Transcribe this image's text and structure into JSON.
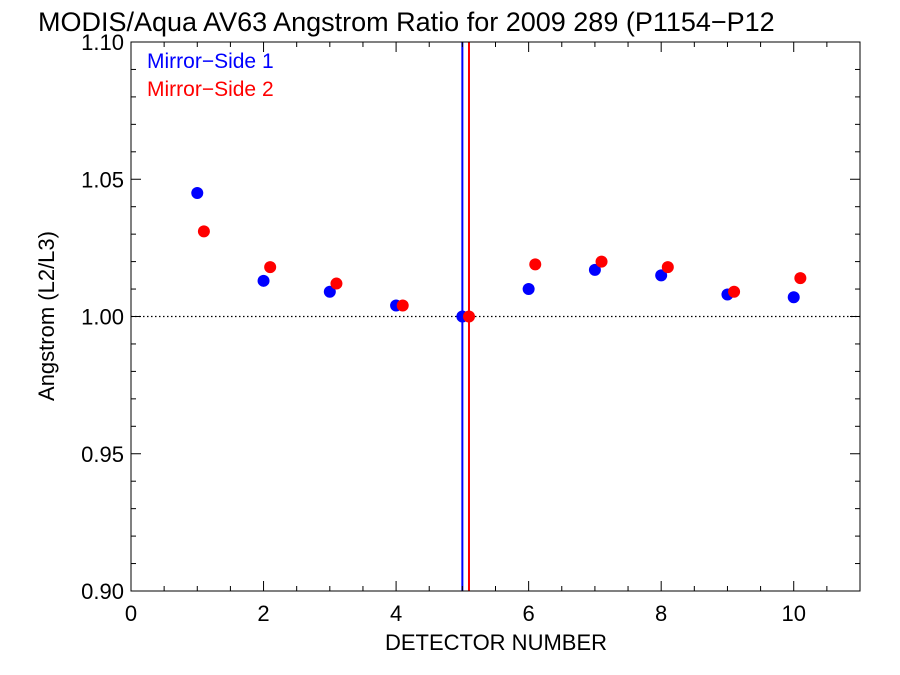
{
  "chart_data": {
    "type": "scatter",
    "title": "MODIS/Aqua AV63 Angstrom Ratio for 2009 289 (P1154−P12",
    "xlabel": "DETECTOR NUMBER",
    "ylabel": "Angstrom (L2/L3)",
    "xlim": [
      0,
      11
    ],
    "ylim": [
      0.9,
      1.1
    ],
    "x_ticks": [
      0,
      2,
      4,
      6,
      8,
      10
    ],
    "x_tick_labels": [
      "0",
      "2",
      "4",
      "6",
      "8",
      "10"
    ],
    "y_ticks": [
      0.9,
      0.95,
      1.0,
      1.05,
      1.1
    ],
    "y_tick_labels": [
      "0.90",
      "0.95",
      "1.00",
      "1.05",
      "1.10"
    ],
    "reference_line_y": 1.0,
    "legend_position": "top-left",
    "series": [
      {
        "name": "Mirror−Side 1",
        "color": "#0000ff",
        "x": [
          1,
          2,
          3,
          4,
          5,
          6,
          7,
          8,
          9,
          10
        ],
        "y": [
          1.045,
          1.013,
          1.009,
          1.004,
          1.0,
          1.01,
          1.017,
          1.015,
          1.008,
          1.007
        ],
        "vertical_line_x": 5.0
      },
      {
        "name": "Mirror−Side 2",
        "color": "#ff0000",
        "x": [
          1.1,
          2.1,
          3.1,
          4.1,
          5.1,
          6.1,
          7.1,
          8.1,
          9.1,
          10.1
        ],
        "y": [
          1.031,
          1.018,
          1.012,
          1.004,
          1.0,
          1.019,
          1.02,
          1.018,
          1.009,
          1.014
        ],
        "vertical_line_x": 5.1
      }
    ]
  }
}
